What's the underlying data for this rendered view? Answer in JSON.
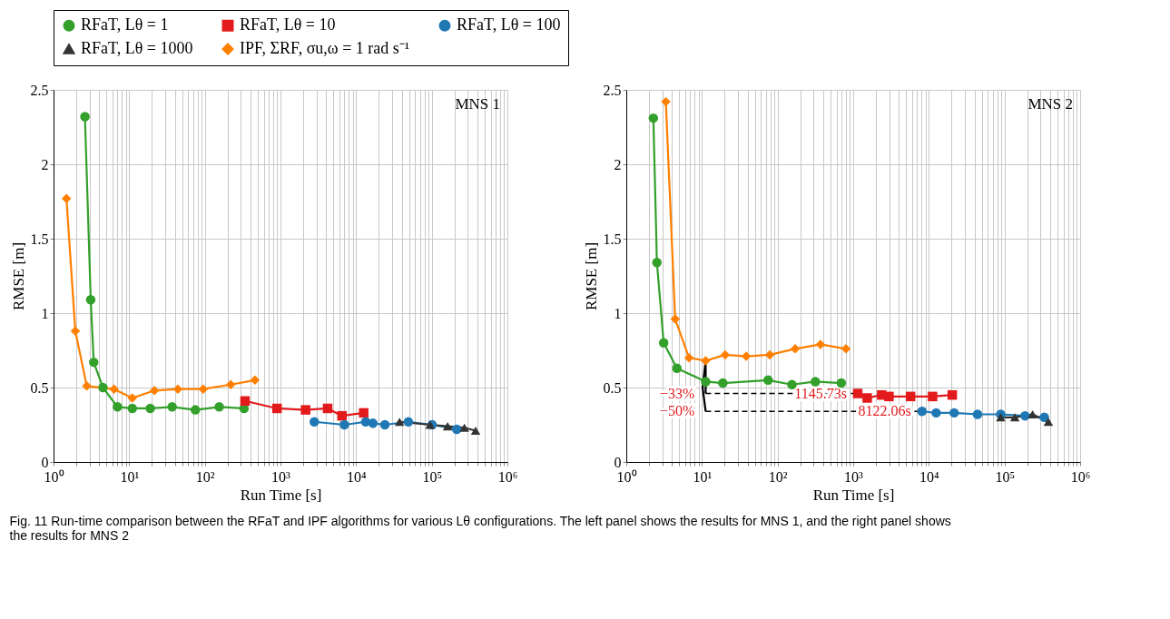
{
  "chart_data": [
    {
      "type": "line",
      "title": "MNS 1",
      "xlabel": "Run Time [s]",
      "ylabel": "RMSE [m]",
      "log": "x",
      "grid": true,
      "legend": "top",
      "line_style": "solid",
      "xlim": [
        1,
        1000000
      ],
      "ylim": [
        0,
        2.5
      ],
      "yticks": [
        0,
        0.5,
        1,
        1.5,
        2,
        2.5
      ],
      "xticks": [
        {
          "value": 1,
          "label": "10⁰"
        },
        {
          "value": 10,
          "label": "10¹"
        },
        {
          "value": 100,
          "label": "10²"
        },
        {
          "value": 1000,
          "label": "10³"
        },
        {
          "value": 10000,
          "label": "10⁴"
        },
        {
          "value": 100000,
          "label": "10⁵"
        },
        {
          "value": 1000000,
          "label": "10⁶"
        },
        {
          "value": 2,
          "label": null
        },
        {
          "value": 3,
          "label": null
        },
        {
          "value": 4,
          "label": null
        },
        {
          "value": 5,
          "label": null
        },
        {
          "value": 6,
          "label": null
        },
        {
          "value": 7,
          "label": null
        },
        {
          "value": 8,
          "label": null
        },
        {
          "value": 9,
          "label": null
        },
        {
          "value": 20,
          "label": null
        },
        {
          "value": 30,
          "label": null
        },
        {
          "value": 40,
          "label": null
        },
        {
          "value": 50,
          "label": null
        },
        {
          "value": 60,
          "label": null
        },
        {
          "value": 70,
          "label": null
        },
        {
          "value": 80,
          "label": null
        },
        {
          "value": 90,
          "label": null
        },
        {
          "value": 200,
          "label": null
        },
        {
          "value": 300,
          "label": null
        },
        {
          "value": 400,
          "label": null
        },
        {
          "value": 500,
          "label": null
        },
        {
          "value": 600,
          "label": null
        },
        {
          "value": 700,
          "label": null
        },
        {
          "value": 800,
          "label": null
        },
        {
          "value": 900,
          "label": null
        },
        {
          "value": 2000,
          "label": null
        },
        {
          "value": 3000,
          "label": null
        },
        {
          "value": 4000,
          "label": null
        },
        {
          "value": 5000,
          "label": null
        },
        {
          "value": 6000,
          "label": null
        },
        {
          "value": 7000,
          "label": null
        },
        {
          "value": 8000,
          "label": null
        },
        {
          "value": 9000,
          "label": null
        },
        {
          "value": 20000,
          "label": null
        },
        {
          "value": 30000,
          "label": null
        },
        {
          "value": 40000,
          "label": null
        },
        {
          "value": 50000,
          "label": null
        },
        {
          "value": 60000,
          "label": null
        },
        {
          "value": 70000,
          "label": null
        },
        {
          "value": 80000,
          "label": null
        },
        {
          "value": 90000,
          "label": null
        },
        {
          "value": 200000,
          "label": null
        },
        {
          "value": 300000,
          "label": null
        },
        {
          "value": 400000,
          "label": null
        },
        {
          "value": 500000,
          "label": null
        },
        {
          "value": 600000,
          "label": null
        },
        {
          "value": 700000,
          "label": null
        },
        {
          "value": 800000,
          "label": null
        },
        {
          "value": 900000,
          "label": null
        }
      ],
      "series": [
        {
          "name": "RFaT, Lθ = 1",
          "color": "#33a02c",
          "marker": "circle",
          "x": [
            2.6,
            3.1,
            3.4,
            4.5,
            7.0,
            11,
            19,
            37,
            75,
            155,
            330
          ],
          "values": [
            2.32,
            1.09,
            0.67,
            0.5,
            0.37,
            0.36,
            0.36,
            0.37,
            0.35,
            0.37,
            0.36
          ]
        },
        {
          "name": "RFaT, Lθ = 10",
          "color": "#e31a1c",
          "marker": "square",
          "x": [
            340,
            900,
            2150,
            4200,
            6500,
            12600
          ],
          "values": [
            0.41,
            0.36,
            0.35,
            0.36,
            0.31,
            0.33
          ]
        },
        {
          "name": "RFaT, Lθ = 100",
          "color": "#1f78b4",
          "marker": "circle",
          "x": [
            2800,
            7000,
            13400,
            16700,
            24000,
            49000,
            101000,
            214000
          ],
          "values": [
            0.27,
            0.25,
            0.27,
            0.26,
            0.25,
            0.27,
            0.25,
            0.22
          ]
        },
        {
          "name": "RFaT, Lθ = 1000",
          "color": "#333333",
          "marker": "triangle",
          "x": [
            37500,
            95000,
            162000,
            270000,
            380000
          ],
          "values": [
            0.27,
            0.25,
            0.24,
            0.23,
            0.21
          ]
        },
        {
          "name": "IPF, ΣRF, σu,ω = 1 rad s⁻¹",
          "color": "#ff7f00",
          "marker": "diamond",
          "x": [
            1.48,
            1.94,
            2.75,
            6.3,
            11,
            21.6,
            44,
            95,
            220,
            460
          ],
          "values": [
            1.77,
            0.88,
            0.51,
            0.49,
            0.43,
            0.48,
            0.49,
            0.49,
            0.52,
            0.55
          ]
        }
      ],
      "annotations": [
        "Fig. 11 Run-time comparison between the RFaT and IPF algorithms for various Lθ configurations. The left panel shows the results for MNS 1, and the right panel shows the results for MNS 2"
      ]
    },
    {
      "type": "line",
      "title": "MNS 2",
      "xlabel": "Run Time [s]",
      "ylabel": "RMSE [m]",
      "log": "x",
      "grid": true,
      "legend": "top",
      "line_style": "solid",
      "xlim": [
        1,
        1000000
      ],
      "ylim": [
        0,
        2.5
      ],
      "yticks": [
        0,
        0.5,
        1,
        1.5,
        2,
        2.5
      ],
      "xticks": [
        {
          "value": 1,
          "label": "10⁰"
        },
        {
          "value": 10,
          "label": "10¹"
        },
        {
          "value": 100,
          "label": "10²"
        },
        {
          "value": 1000,
          "label": "10³"
        },
        {
          "value": 10000,
          "label": "10⁴"
        },
        {
          "value": 100000,
          "label": "10⁵"
        },
        {
          "value": 1000000,
          "label": "10⁶"
        },
        {
          "value": 2,
          "label": null
        },
        {
          "value": 3,
          "label": null
        },
        {
          "value": 4,
          "label": null
        },
        {
          "value": 5,
          "label": null
        },
        {
          "value": 6,
          "label": null
        },
        {
          "value": 7,
          "label": null
        },
        {
          "value": 8,
          "label": null
        },
        {
          "value": 9,
          "label": null
        },
        {
          "value": 20,
          "label": null
        },
        {
          "value": 30,
          "label": null
        },
        {
          "value": 40,
          "label": null
        },
        {
          "value": 50,
          "label": null
        },
        {
          "value": 60,
          "label": null
        },
        {
          "value": 70,
          "label": null
        },
        {
          "value": 80,
          "label": null
        },
        {
          "value": 90,
          "label": null
        },
        {
          "value": 200,
          "label": null
        },
        {
          "value": 300,
          "label": null
        },
        {
          "value": 400,
          "label": null
        },
        {
          "value": 500,
          "label": null
        },
        {
          "value": 600,
          "label": null
        },
        {
          "value": 700,
          "label": null
        },
        {
          "value": 800,
          "label": null
        },
        {
          "value": 900,
          "label": null
        },
        {
          "value": 2000,
          "label": null
        },
        {
          "value": 3000,
          "label": null
        },
        {
          "value": 4000,
          "label": null
        },
        {
          "value": 5000,
          "label": null
        },
        {
          "value": 6000,
          "label": null
        },
        {
          "value": 7000,
          "label": null
        },
        {
          "value": 8000,
          "label": null
        },
        {
          "value": 9000,
          "label": null
        },
        {
          "value": 20000,
          "label": null
        },
        {
          "value": 30000,
          "label": null
        },
        {
          "value": 40000,
          "label": null
        },
        {
          "value": 50000,
          "label": null
        },
        {
          "value": 60000,
          "label": null
        },
        {
          "value": 70000,
          "label": null
        },
        {
          "value": 80000,
          "label": null
        },
        {
          "value": 90000,
          "label": null
        },
        {
          "value": 200000,
          "label": null
        },
        {
          "value": 300000,
          "label": null
        },
        {
          "value": 400000,
          "label": null
        },
        {
          "value": 500000,
          "label": null
        },
        {
          "value": 600000,
          "label": null
        },
        {
          "value": 700000,
          "label": null
        },
        {
          "value": 800000,
          "label": null
        },
        {
          "value": 900000,
          "label": null
        }
      ],
      "series": [
        {
          "name": "RFaT, Lθ = 1",
          "color": "#33a02c",
          "marker": "circle",
          "x": [
            2.28,
            2.54,
            3.12,
            4.67,
            11.2,
            18.9,
            75,
            155,
            316,
            695
          ],
          "values": [
            2.31,
            1.34,
            0.8,
            0.63,
            0.54,
            0.53,
            0.55,
            0.52,
            0.54,
            0.53
          ]
        },
        {
          "name": "RFaT, Lθ = 10",
          "color": "#e31a1c",
          "marker": "square",
          "x": [
            1145.73,
            1530,
            2380,
            2970,
            5730,
            11200,
            20400
          ],
          "values": [
            0.46,
            0.43,
            0.45,
            0.44,
            0.44,
            0.44,
            0.45
          ]
        },
        {
          "name": "RFaT, Lθ = 100",
          "color": "#1f78b4",
          "marker": "circle",
          "x": [
            8122.06,
            12500,
            21600,
            44000,
            89000,
            187000,
            336000
          ],
          "values": [
            0.34,
            0.33,
            0.33,
            0.32,
            0.32,
            0.31,
            0.3
          ]
        },
        {
          "name": "RFaT, Lθ = 1000",
          "color": "#333333",
          "marker": "triangle",
          "x": [
            89000,
            137000,
            235000,
            380000
          ],
          "values": [
            0.3,
            0.3,
            0.32,
            0.27
          ]
        },
        {
          "name": "IPF, ΣRF, σu,ω = 1 rad s⁻¹",
          "color": "#ff7f00",
          "marker": "diamond",
          "x": [
            3.33,
            4.43,
            6.75,
            11.2,
            20.3,
            38.5,
            79,
            171,
            369,
            800
          ],
          "values": [
            2.42,
            0.96,
            0.7,
            0.68,
            0.72,
            0.71,
            0.72,
            0.76,
            0.79,
            0.76
          ]
        },
        {
          "color": "#000000",
          "marker": "none",
          "line_style": "dashed",
          "x": [
            11.2,
            1145.73
          ],
          "values": [
            0.46,
            0.46
          ]
        },
        {
          "color": "#000000",
          "marker": "none",
          "line_style": "dashed",
          "x": [
            11.2,
            8122.06
          ],
          "values": [
            0.34,
            0.34
          ]
        },
        {
          "color": "#000000",
          "marker": "none",
          "x": [
            11.2,
            11.2
          ],
          "values": [
            0.68,
            0.46
          ]
        },
        {
          "color": "#000000",
          "marker": "none",
          "x": [
            11.2,
            10.2,
            11.2
          ],
          "values": [
            0.68,
            0.5,
            0.34
          ]
        }
      ],
      "annotations": [
        {
          "text": "−33%",
          "x": 11.2,
          "y": 0.46
        },
        {
          "text": "−50%",
          "x": 11.2,
          "y": 0.34
        },
        {
          "text": "1145.73s",
          "x": 1145.73,
          "y": 0.46
        },
        {
          "text": "8122.06s",
          "x": 8122.06,
          "y": 0.34
        }
      ]
    }
  ]
}
